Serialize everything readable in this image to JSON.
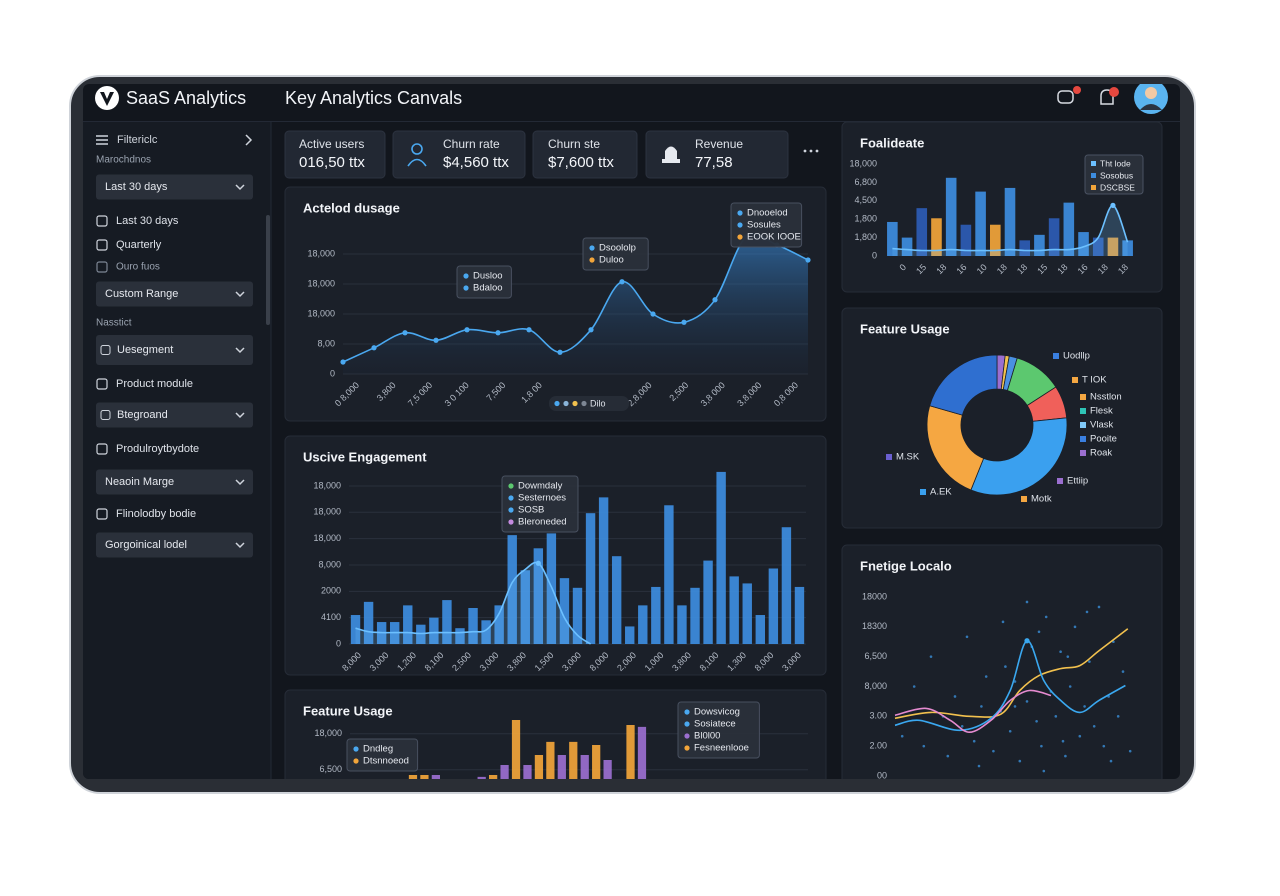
{
  "header": {
    "brand": "SaaS Analytics",
    "title": "Key Analytics Canvals"
  },
  "sidebar": {
    "items": [
      "Filtericlc",
      "Marochdnos",
      "Last 30 days",
      "Last 30 days",
      "Quarterly",
      "Ouro fuos",
      "Custom Range",
      "Nasstict",
      "Uesegment",
      "Product module",
      "Btegroand",
      "Produlroytbydote",
      "Neaoin Marge",
      "Flinolodby bodie",
      "Gorgoinical lodel"
    ]
  },
  "kpis": [
    {
      "label": "Active users",
      "value": "016,50 ttx"
    },
    {
      "label": "Churn rate",
      "value": "$4,560 ttx"
    },
    {
      "label": "Churn ste",
      "value": "$7,600 ttx"
    },
    {
      "label": "Revenue",
      "value": "77,58"
    }
  ],
  "panels": [
    {
      "type": "area",
      "title": "Actelod dusage",
      "color": "#4aa8f0",
      "grid": true,
      "values": [
        1600,
        3500,
        5500,
        4500,
        5900,
        5500,
        5900,
        2900,
        5900,
        12300,
        8000,
        6900,
        9900,
        18300,
        17200,
        15200
      ],
      "ylim": [
        0,
        20000
      ],
      "yticks": [
        0,
        {
          "value": 4000,
          "label": "8,00"
        },
        {
          "value": 8000,
          "label": "18,000"
        },
        {
          "value": 12000,
          "label": "18,000"
        },
        {
          "value": 16000,
          "label": "18,000"
        }
      ],
      "xlabels": [
        "0 8,000",
        "3,800",
        "7,5 000",
        "3 0 100",
        "7,500",
        "1,8 00",
        null,
        null,
        "2,8,000",
        "2,500",
        "3,8 000",
        "3,8,000",
        "0,8 000"
      ],
      "tooltips": [
        {
          "items": [
            {
              "label": "Dusloo",
              "color": "#4aa8f0"
            },
            {
              "label": "Bdaloo",
              "color": "#4aa8f0"
            }
          ]
        },
        {
          "items": [
            {
              "label": "Dsoololp",
              "color": "#4aa8f0"
            },
            {
              "label": "Duloo",
              "color": "#f2a53a"
            }
          ]
        },
        {
          "items": [
            {
              "label": "Dnooelod",
              "color": "#4aa8f0"
            },
            {
              "label": "Sosules",
              "color": "#4aa8f0"
            },
            {
              "label": "EOOK IOOE",
              "color": "#f2a53a"
            }
          ]
        }
      ],
      "chip": "Dilo"
    },
    {
      "type": "bar",
      "title": "Uscive Engagement",
      "grid": true,
      "series": [
        {
          "color": "#3d8de0",
          "values": [
            3300,
            4800,
            2500,
            2500,
            4400,
            2200,
            3000,
            5000,
            1800,
            4100,
            2700,
            4400,
            12400,
            8400,
            10900,
            12600,
            7500,
            6400,
            14900,
            16700,
            10000,
            2000,
            4400,
            6500,
            15800,
            4400,
            6400,
            9500,
            19600,
            7700,
            6900,
            3300,
            8600,
            13300,
            6500
          ]
        }
      ],
      "line": {
        "color": "#6cc0ff",
        "fill": true,
        "values": [
          1800,
          1400,
          1300,
          1300,
          1300,
          1200,
          1300,
          1300,
          1300,
          1400,
          1600,
          3500,
          7000,
          8500,
          9200,
          6500,
          3000,
          1000,
          0,
          null,
          null,
          null,
          null,
          null,
          null,
          null,
          null,
          null,
          null,
          null,
          null,
          null,
          null,
          null,
          null
        ]
      },
      "ylim": [
        0,
        20000
      ],
      "yticks": [
        0,
        {
          "value": 3000,
          "label": "4100"
        },
        {
          "value": 6000,
          "label": "2000"
        },
        {
          "value": 9000,
          "label": "8,000"
        },
        {
          "value": 12000,
          "label": "18,000"
        },
        {
          "value": 15000,
          "label": "18,000"
        },
        {
          "value": 18000,
          "label": "18,000"
        }
      ],
      "xlabels": [
        "8,000",
        "3,000",
        "1,200",
        "8,100",
        "2,500",
        "3,000",
        "3,800",
        "1,500",
        "3,000",
        "8,000",
        "2,000",
        "1,000",
        "3,800",
        "8,100",
        "1,300",
        "8,000",
        "3,000"
      ],
      "tooltips": [
        {
          "items": [
            {
              "label": "Dowmdaly",
              "color": "#5cc86f"
            },
            {
              "label": "Sesternoes",
              "color": "#4aa8f0"
            },
            {
              "label": "SOSB",
              "color": "#4aa8f0"
            },
            {
              "label": "Bleroneded",
              "color": "#c48be0"
            }
          ]
        }
      ]
    },
    {
      "type": "bar",
      "title": "Feature Usage",
      "grid": true,
      "series": [
        {
          "color": "#f2a53a",
          "values": [
            null,
            null,
            null,
            null,
            null,
            4800,
            4800,
            null,
            null,
            null,
            null,
            null,
            4800,
            null,
            22400,
            null,
            11200,
            15400,
            null,
            15400,
            null,
            14400,
            null,
            null,
            20800,
            null,
            null,
            null,
            null,
            null,
            null,
            null,
            null,
            null,
            null,
            null,
            null,
            null,
            null,
            null
          ]
        },
        {
          "color": "#9b6fd0",
          "values": [
            null,
            null,
            null,
            null,
            null,
            null,
            null,
            4800,
            null,
            null,
            null,
            4200,
            null,
            8000,
            null,
            8000,
            null,
            null,
            11200,
            null,
            11200,
            null,
            9600,
            null,
            null,
            20200,
            null,
            null,
            null,
            null,
            null,
            null,
            null,
            null,
            null,
            null,
            null,
            null,
            null,
            null
          ]
        }
      ],
      "ylim": [
        0,
        24000
      ],
      "yticks": [
        {
          "value": 6500,
          "label": "6,500"
        },
        {
          "value": 18000,
          "label": "18,000"
        }
      ],
      "tooltips": [
        {
          "items": [
            {
              "label": "Dndleg",
              "color": "#4aa8f0"
            },
            {
              "label": "Dtsnnoeod",
              "color": "#f2a53a"
            }
          ]
        },
        {
          "items": [
            {
              "label": "Dowsvicog",
              "color": "#4aa8f0"
            },
            {
              "label": "Sosiatece",
              "color": "#4aa8f0"
            },
            {
              "label": "Bl0l00",
              "color": "#9b6fd0"
            },
            {
              "label": "Fesneenlooe",
              "color": "#f2a53a"
            }
          ]
        }
      ]
    },
    {
      "type": "bar",
      "title": "Foalideate",
      "series": [
        {
          "colors": [
            "#3d8de0",
            "#3d8de0",
            "#2c5cb5",
            "#f2a53a",
            "#3d8de0",
            "#2c5cb5",
            "#3d8de0",
            "#f2a53a",
            "#3d8de0",
            "#2c5cb5",
            "#3d8de0",
            "#2c5cb5",
            "#3d8de0",
            "#3d8de0",
            "#2c5cb5",
            "#f2a53a",
            "#3d8de0"
          ],
          "values": [
            3700,
            2000,
            5200,
            4100,
            8500,
            3400,
            7000,
            3400,
            7400,
            1700,
            2300,
            4100,
            5800,
            2600,
            2000,
            2000,
            1700
          ]
        }
      ],
      "line": {
        "color": "#6cc0ff",
        "fill": true,
        "values": [
          800,
          700,
          600,
          600,
          700,
          600,
          600,
          600,
          700,
          600,
          600,
          700,
          700,
          1000,
          2000,
          5500,
          1500
        ]
      },
      "ylim": [
        0,
        10000
      ],
      "yticks": [
        0,
        {
          "value": 2000,
          "label": "1,800"
        },
        {
          "value": 4000,
          "label": "1,800"
        },
        {
          "value": 6000,
          "label": "4,500"
        },
        {
          "value": 8000,
          "label": "6,800"
        },
        {
          "value": 10000,
          "label": "18,000"
        }
      ],
      "xlabels": [
        "0",
        "15",
        "18",
        "16",
        "10",
        "18",
        "18",
        "15",
        "18",
        "16",
        "18",
        "18"
      ],
      "legend": [
        {
          "label": "Tht lode",
          "color": "#6cc0ff"
        },
        {
          "label": "Sosobus",
          "color": "#3d8de0"
        },
        {
          "label": "DSCBSE",
          "color": "#f2a53a"
        }
      ]
    },
    {
      "type": "donut",
      "title": "Feature Usage",
      "values": [
        2,
        1,
        2,
        12,
        8,
        35,
        25,
        22
      ],
      "colors": [
        "#9b6fd0",
        "#f2c14e",
        "#4a90e2",
        "#5cc86f",
        "#f0605a",
        "#3aa0ef",
        "#f5a742",
        "#2f6fd0"
      ],
      "legend": [
        {
          "label": "Uodllp",
          "color": "#3a7fe0"
        },
        {
          "label": "T IOK",
          "color": "#f5a742"
        },
        {
          "label": "Nsstlon",
          "color": "#f5a742"
        },
        {
          "label": "Flesk",
          "color": "#2ec4b6"
        },
        {
          "label": "Vlask",
          "color": "#7fc8f8"
        },
        {
          "label": "Pooite",
          "color": "#3a7fe0"
        },
        {
          "label": "Roak",
          "color": "#9b6fd0"
        },
        {
          "label": "Ettiip",
          "color": "#9b6fd0"
        },
        {
          "label": "Motk",
          "color": "#f5a742"
        },
        {
          "label": "A.EK",
          "color": "#3aa0ef"
        },
        {
          "label": "M.SK",
          "color": "#6a5fd0"
        }
      ]
    },
    {
      "type": "scatter",
      "title": "Fnetige Localo",
      "xlim": [
        0,
        100
      ],
      "ylim": [
        0,
        18000
      ],
      "yticks": [
        {
          "value": 0,
          "label": "00"
        },
        {
          "value": 3000,
          "label": "2.00"
        },
        {
          "value": 6000,
          "label": "3.00"
        },
        {
          "value": 9000,
          "label": "8,000"
        },
        {
          "value": 12000,
          "label": "6,500"
        },
        {
          "value": 15000,
          "label": "18300"
        },
        18000
      ],
      "points": {
        "color": "#3a8fd8",
        "x": [
          3,
          8,
          12,
          15,
          20,
          22,
          25,
          28,
          30,
          33,
          36,
          38,
          41,
          44,
          46,
          48,
          50,
          52,
          55,
          57,
          59,
          61,
          63,
          65,
          67,
          69,
          71,
          73,
          75,
          77,
          79,
          81,
          83,
          85,
          87,
          89,
          91,
          93,
          95,
          98,
          35,
          45,
          55,
          60,
          70,
          80,
          90,
          62,
          72,
          50
        ],
        "y": [
          4000,
          9000,
          3000,
          12000,
          6000,
          2000,
          8000,
          5000,
          14000,
          3500,
          7000,
          10000,
          2500,
          6500,
          11000,
          4500,
          9500,
          1500,
          7500,
          13000,
          5500,
          3000,
          16000,
          8500,
          6000,
          12500,
          2000,
          9000,
          15000,
          4000,
          7000,
          11500,
          5000,
          17000,
          3000,
          8000,
          13500,
          6000,
          10500,
          2500,
          1000,
          15500,
          17500,
          14500,
          3500,
          16500,
          1500,
          500,
          12000,
          7000
        ]
      },
      "lines": [
        {
          "color": "#f2c14e",
          "x": [
            0,
            15,
            31,
            44,
            52,
            60,
            69,
            77,
            85,
            97
          ],
          "y": [
            5800,
            6400,
            6000,
            6200,
            8600,
            10100,
            10800,
            11100,
            12600,
            14800
          ]
        },
        {
          "color": "#3aa8f0",
          "x": [
            0,
            10,
            27,
            40,
            48,
            55,
            62,
            69,
            77,
            85,
            96
          ],
          "y": [
            5100,
            5600,
            4600,
            5800,
            8600,
            13600,
            9600,
            7600,
            6400,
            7600,
            9100
          ]
        },
        {
          "color": "#e58bd0",
          "x": [
            0,
            13,
            23,
            31,
            40,
            48,
            56,
            65
          ],
          "y": [
            6100,
            6800,
            5600,
            4400,
            5600,
            7600,
            8600,
            8100
          ]
        }
      ]
    }
  ]
}
